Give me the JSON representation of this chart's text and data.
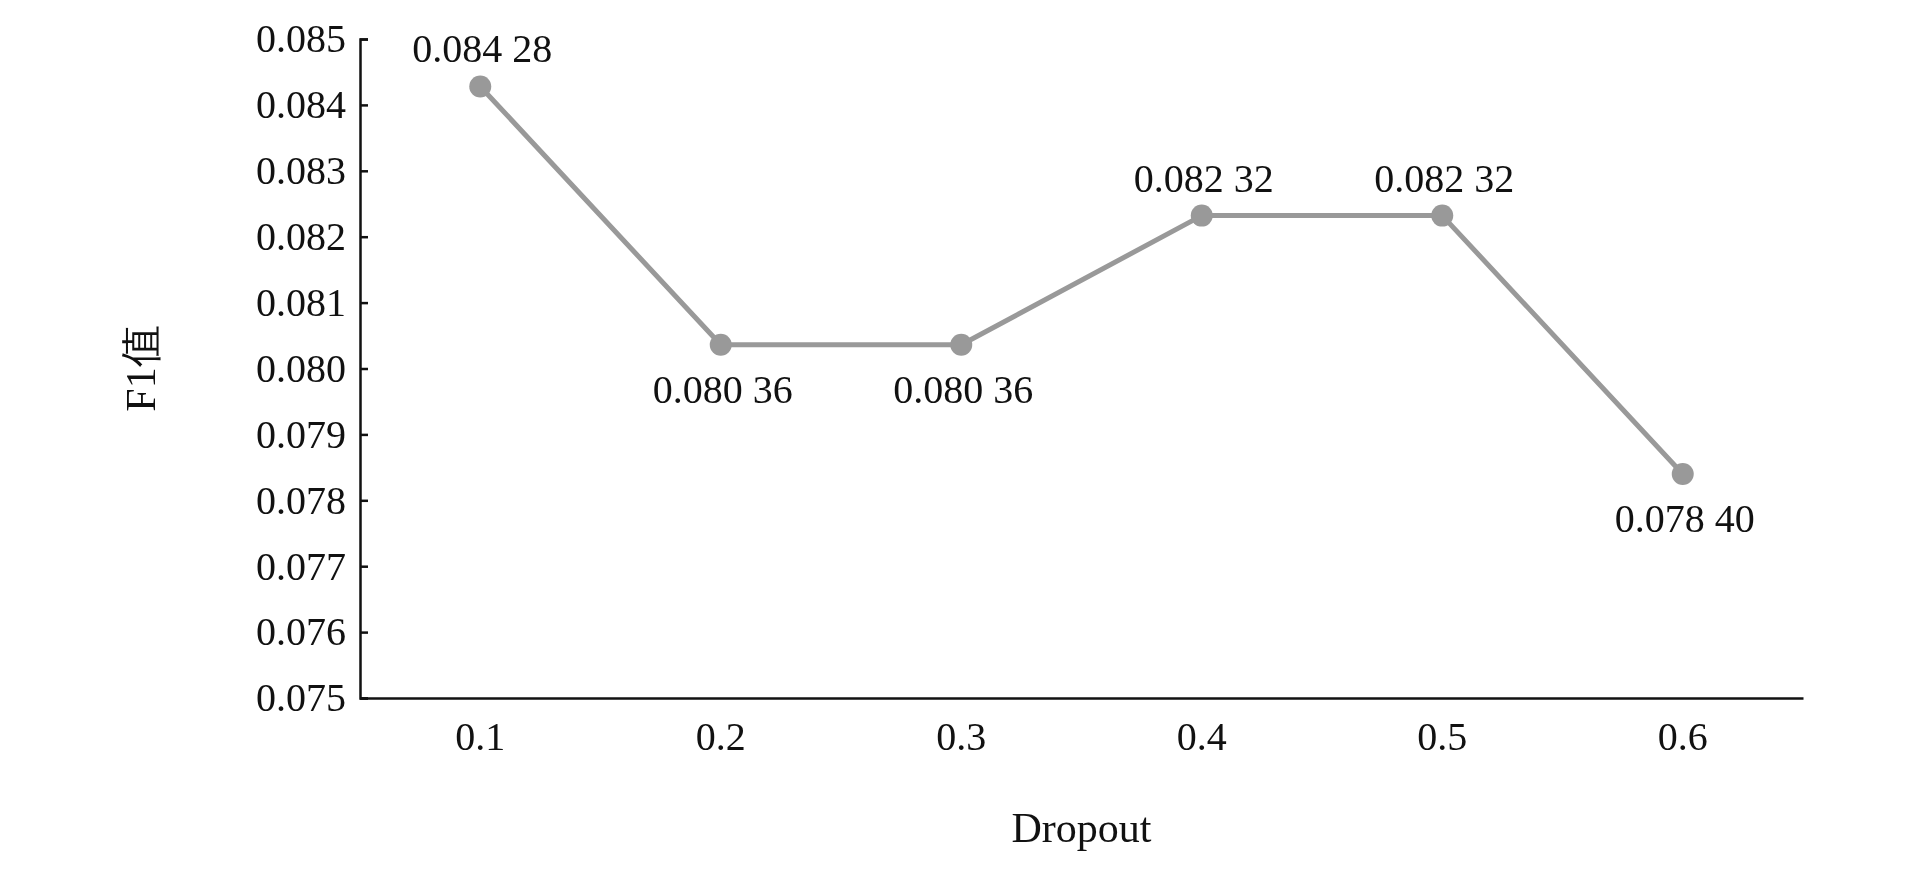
{
  "chart_data": {
    "type": "line",
    "xlabel": "Dropout",
    "ylabel": "F1值",
    "categories": [
      "0.1",
      "0.2",
      "0.3",
      "0.4",
      "0.5",
      "0.6"
    ],
    "series": [
      {
        "color": "#999999",
        "values": [
          0.08428,
          0.08036,
          0.08036,
          0.08232,
          0.08232,
          0.0784
        ],
        "value_labels": [
          "0.084 28",
          "0.080 36",
          "0.080 36",
          "0.082 32",
          "0.082 32",
          "0.078 40"
        ]
      }
    ],
    "ylim": [
      0.075,
      0.085
    ],
    "yticks": [
      0.075,
      0.076,
      0.077,
      0.078,
      0.079,
      {
        "value": 0.08,
        "label": "0.080"
      },
      0.081,
      0.082,
      0.083,
      0.084,
      0.085
    ],
    "marker": "circle",
    "line_style": "solid",
    "grid": false
  }
}
